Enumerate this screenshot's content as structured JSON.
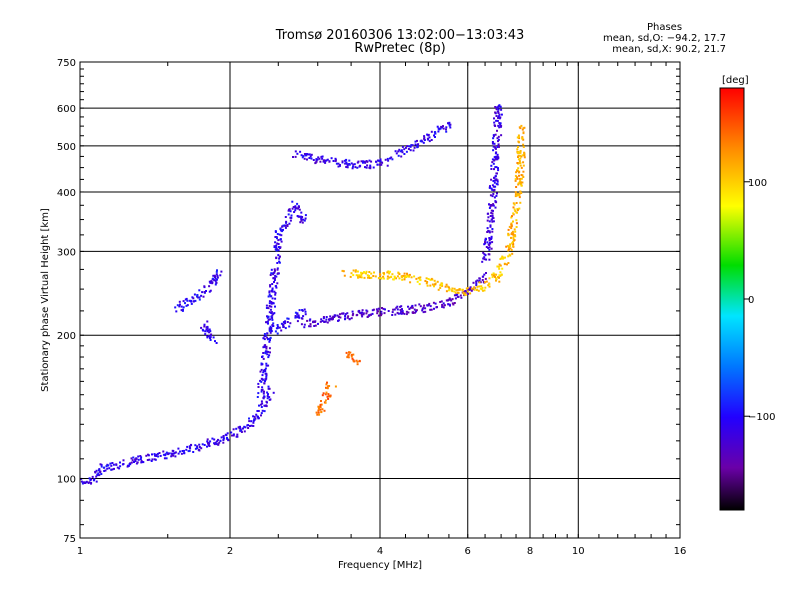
{
  "header": {
    "title_line1": "Tromsø 20160306 13:02:00−13:03:43",
    "title_line2": "RwPretec (8p)"
  },
  "phases_box": {
    "title": "Phases",
    "line_o": "mean, sd,O: −94.2, 17.7",
    "line_x": "mean, sd,X:  90.2, 21.7"
  },
  "chart_data": {
    "type": "scatter",
    "xlabel": "Frequency [MHz]",
    "ylabel": "Stationary phase Virtual Height [km]",
    "xscale": "log",
    "yscale": "log",
    "xlim": [
      1,
      16
    ],
    "ylim": [
      75,
      750
    ],
    "x_ticks": [
      1,
      2,
      4,
      6,
      8,
      10,
      16
    ],
    "x_gridlines": [
      2,
      4,
      6,
      8,
      10
    ],
    "y_ticks": [
      75,
      100,
      200,
      300,
      400,
      500,
      600,
      750
    ],
    "y_gridlines": [
      100,
      200,
      300,
      400,
      500,
      600
    ],
    "grid": true,
    "colorbar": {
      "label": "[deg]",
      "range": [
        -180,
        180
      ],
      "ticks": [
        100,
        0,
        -100
      ],
      "tick_labels": [
        "100",
        "0",
        "−100"
      ],
      "colormap": "rainbow"
    },
    "traces": [
      {
        "x": [
          1.0,
          1.05,
          1.1,
          1.2,
          1.3,
          1.4,
          1.5,
          1.6,
          1.7,
          1.8,
          1.9,
          2.0,
          2.1,
          2.2,
          2.3,
          2.4
        ],
        "y": [
          100,
          99,
          106,
          107,
          110,
          111,
          113,
          115,
          117,
          119,
          121,
          123,
          127,
          132,
          140,
          155
        ],
        "phase": -110
      },
      {
        "x": [
          1.55,
          1.65,
          1.75,
          1.8,
          1.85,
          1.9
        ],
        "y": [
          228,
          236,
          244,
          252,
          262,
          275
        ],
        "phase": -105
      },
      {
        "x": [
          1.75,
          1.8,
          1.85
        ],
        "y": [
          215,
          205,
          195
        ],
        "phase": -110
      },
      {
        "x": [
          2.3,
          2.5,
          2.7,
          2.8
        ],
        "y": [
          150,
          330,
          380,
          350
        ],
        "phase": -110
      },
      {
        "x": [
          2.35,
          2.8
        ],
        "y": [
          200,
          225
        ],
        "phase": -105
      },
      {
        "x": [
          2.7,
          3.0,
          3.3,
          3.6,
          3.9,
          4.2
        ],
        "y": [
          485,
          470,
          462,
          458,
          460,
          468
        ],
        "phase": -110
      },
      {
        "x": [
          4.3,
          4.7,
          5.1,
          5.5
        ],
        "y": [
          485,
          505,
          530,
          560
        ],
        "phase": -110
      },
      {
        "x": [
          2.8,
          3.2,
          3.6,
          4.0,
          4.5,
          5.0,
          5.5,
          6.0,
          6.5
        ],
        "y": [
          212,
          218,
          222,
          225,
          227,
          230,
          236,
          248,
          268
        ],
        "phase": -125
      },
      {
        "x": [
          6.5,
          6.7,
          6.8,
          6.9
        ],
        "y": [
          290,
          380,
          480,
          620
        ],
        "phase": -115
      },
      {
        "x": [
          3.4,
          3.8,
          4.3,
          4.8,
          5.3,
          5.8,
          6.3,
          6.8,
          7.2
        ],
        "y": [
          270,
          270,
          268,
          262,
          255,
          248,
          252,
          265,
          300
        ],
        "phase": 105
      },
      {
        "x": [
          7.2,
          7.5,
          7.6,
          7.7
        ],
        "y": [
          300,
          380,
          450,
          560
        ],
        "phase": 115
      },
      {
        "x": [
          3.0,
          3.2
        ],
        "y": [
          138,
          160
        ],
        "phase": 140
      },
      {
        "x": [
          3.4,
          3.6
        ],
        "y": [
          185,
          175
        ],
        "phase": 145
      }
    ]
  }
}
